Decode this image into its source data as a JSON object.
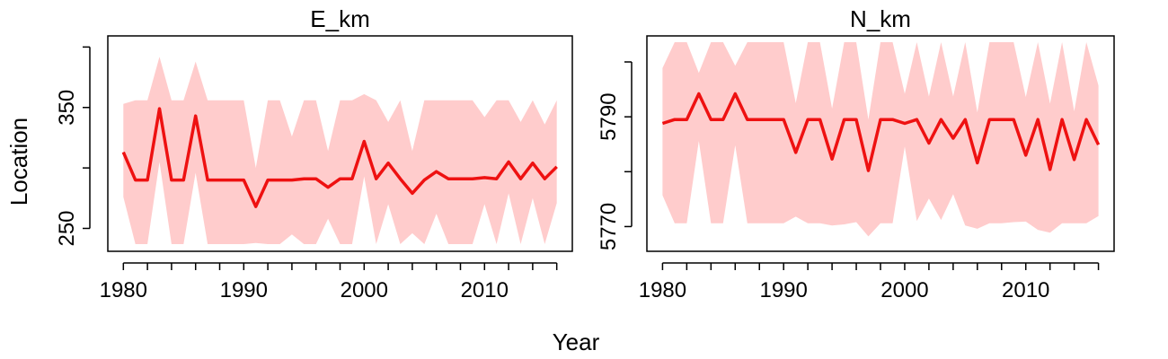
{
  "chart_data": [
    {
      "type": "line",
      "title": "E_km",
      "xlabel": "",
      "ylabel": "Location",
      "xlim": [
        1980,
        2016
      ],
      "ylim": [
        237,
        404
      ],
      "x_ticks": [
        1980,
        1990,
        2000,
        2010
      ],
      "x_minor_step": 2,
      "y_ticks": [
        250,
        350
      ],
      "y_minor_step": 50,
      "line_color": "#ee1111",
      "band_color": "#ffcccc",
      "x": [
        1980,
        1981,
        1982,
        1983,
        1984,
        1985,
        1986,
        1987,
        1988,
        1989,
        1990,
        1991,
        1992,
        1993,
        1994,
        1995,
        1996,
        1997,
        1998,
        1999,
        2000,
        2001,
        2002,
        2003,
        2004,
        2005,
        2006,
        2007,
        2008,
        2009,
        2010,
        2011,
        2012,
        2013,
        2014,
        2015,
        2016
      ],
      "series": [
        {
          "values": [
            313,
            290,
            290,
            349,
            290,
            290,
            343,
            290,
            290,
            290,
            290,
            268,
            290,
            290,
            290,
            291,
            291,
            284,
            291,
            291,
            322,
            291,
            304,
            291,
            279,
            290,
            297,
            291,
            291,
            291,
            292,
            291,
            305,
            291,
            304,
            291,
            301
          ]
        },
        {
          "values": [
            353,
            356,
            356,
            392,
            356,
            356,
            388,
            356,
            356,
            356,
            356,
            300,
            356,
            356,
            326,
            356,
            356,
            314,
            356,
            356,
            361,
            356,
            338,
            356,
            314,
            356,
            356,
            356,
            356,
            356,
            342,
            356,
            356,
            338,
            356,
            336,
            356
          ]
        },
        {
          "values": [
            276,
            237,
            237,
            305,
            237,
            237,
            296,
            237,
            237,
            237,
            237,
            238,
            237,
            237,
            245,
            237,
            237,
            258,
            237,
            237,
            293,
            237,
            270,
            237,
            246,
            237,
            262,
            237,
            237,
            237,
            270,
            237,
            279,
            237,
            275,
            237,
            271
          ]
        }
      ]
    },
    {
      "type": "line",
      "title": "N_km",
      "xlabel": "Year",
      "ylabel": "",
      "xlim": [
        1980,
        2016
      ],
      "ylim": [
        5766.8,
        5803.6
      ],
      "x_ticks": [
        1980,
        1990,
        2000,
        2010
      ],
      "x_minor_step": 2,
      "y_ticks": [
        5770,
        5790
      ],
      "y_minor_step": 10,
      "line_color": "#ee1111",
      "band_color": "#ffcccc",
      "x": [
        1980,
        1981,
        1982,
        1983,
        1984,
        1985,
        1986,
        1987,
        1988,
        1989,
        1990,
        1991,
        1992,
        1993,
        1994,
        1995,
        1996,
        1997,
        1998,
        1999,
        2000,
        2001,
        2002,
        2003,
        2004,
        2005,
        2006,
        2007,
        2008,
        2009,
        2010,
        2011,
        2012,
        2013,
        2014,
        2015,
        2016
      ],
      "series": [
        {
          "values": [
            5788.8,
            5789.5,
            5789.5,
            5794.2,
            5789.5,
            5789.5,
            5794.2,
            5789.5,
            5789.5,
            5789.5,
            5789.5,
            5783.5,
            5789.5,
            5789.5,
            5782.3,
            5789.5,
            5789.5,
            5780.2,
            5789.5,
            5789.5,
            5788.8,
            5789.5,
            5785.2,
            5789.5,
            5786.1,
            5789.5,
            5781.6,
            5789.5,
            5789.5,
            5789.5,
            5783.0,
            5789.5,
            5780.4,
            5789.5,
            5782.2,
            5789.5,
            5784.9
          ]
        },
        {
          "values": [
            5798.9,
            5803.6,
            5803.6,
            5798.0,
            5803.6,
            5803.6,
            5799.3,
            5803.6,
            5803.6,
            5803.6,
            5803.6,
            5792.5,
            5803.6,
            5803.6,
            5791.5,
            5803.6,
            5803.6,
            5789.5,
            5803.6,
            5803.6,
            5794.2,
            5803.6,
            5793.7,
            5803.6,
            5793.7,
            5803.6,
            5790.8,
            5803.6,
            5803.6,
            5803.6,
            5793.6,
            5803.6,
            5792.4,
            5803.6,
            5791.0,
            5803.6,
            5795.7
          ]
        },
        {
          "values": [
            5775.7,
            5770.6,
            5770.6,
            5785.6,
            5770.6,
            5770.6,
            5784.8,
            5770.6,
            5770.6,
            5770.6,
            5770.6,
            5771.8,
            5770.6,
            5770.6,
            5770.2,
            5770.4,
            5770.8,
            5768.2,
            5770.6,
            5770.6,
            5784.6,
            5771.0,
            5775.1,
            5771.2,
            5775.9,
            5770.2,
            5769.6,
            5770.6,
            5770.6,
            5770.8,
            5770.9,
            5769.4,
            5768.9,
            5770.6,
            5770.6,
            5770.6,
            5771.9
          ]
        }
      ]
    }
  ]
}
